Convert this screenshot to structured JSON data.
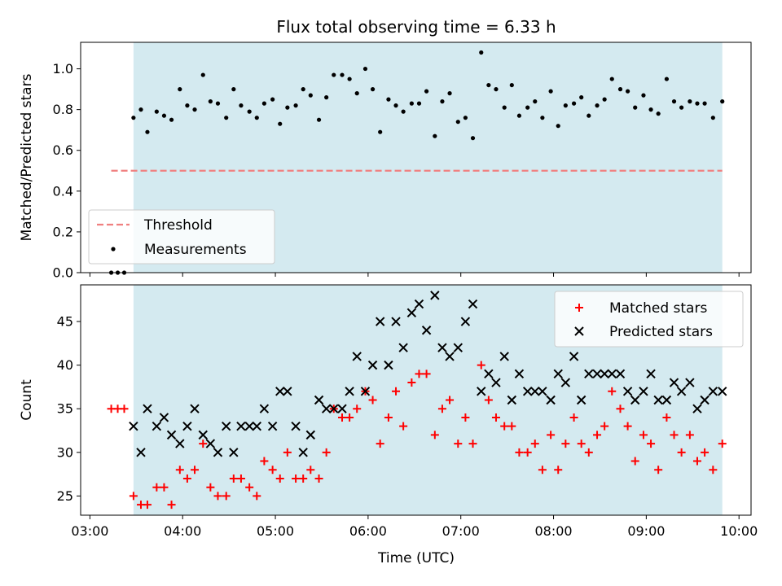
{
  "chart_data": {
    "title": "Flux total observing time = 6.33 h",
    "xlabel": "Time (UTC)",
    "x_ticks": [
      "03:00",
      "04:00",
      "05:00",
      "06:00",
      "07:00",
      "08:00",
      "09:00",
      "10:00"
    ],
    "x_range_hours": [
      2.9,
      10.13
    ],
    "shaded_region_hours": [
      3.47,
      9.82
    ],
    "shade_color": "#d4eaf0",
    "panels": [
      {
        "type": "scatter",
        "ylabel": "Matched/Predicted stars",
        "ylim": [
          0.0,
          1.13
        ],
        "y_ticks": [
          "0.0",
          "0.2",
          "0.4",
          "0.6",
          "0.8",
          "1.0"
        ],
        "legend_position": "lower-left",
        "threshold": {
          "name": "Threshold",
          "value": 0.5,
          "x_range": [
            3.23,
            9.82
          ],
          "color": "#f08080"
        },
        "series": [
          {
            "name": "Measurements",
            "color": "#000000",
            "points": [
              [
                3.23,
                0.0
              ],
              [
                3.3,
                0.0
              ],
              [
                3.37,
                0.0
              ],
              [
                3.47,
                0.76
              ],
              [
                3.55,
                0.8
              ],
              [
                3.62,
                0.69
              ],
              [
                3.72,
                0.79
              ],
              [
                3.8,
                0.77
              ],
              [
                3.88,
                0.75
              ],
              [
                3.97,
                0.9
              ],
              [
                4.05,
                0.82
              ],
              [
                4.13,
                0.8
              ],
              [
                4.22,
                0.97
              ],
              [
                4.3,
                0.84
              ],
              [
                4.38,
                0.83
              ],
              [
                4.47,
                0.76
              ],
              [
                4.55,
                0.9
              ],
              [
                4.63,
                0.82
              ],
              [
                4.72,
                0.79
              ],
              [
                4.8,
                0.76
              ],
              [
                4.88,
                0.83
              ],
              [
                4.97,
                0.85
              ],
              [
                5.05,
                0.73
              ],
              [
                5.13,
                0.81
              ],
              [
                5.22,
                0.82
              ],
              [
                5.3,
                0.9
              ],
              [
                5.38,
                0.87
              ],
              [
                5.47,
                0.75
              ],
              [
                5.55,
                0.86
              ],
              [
                5.63,
                0.97
              ],
              [
                5.72,
                0.97
              ],
              [
                5.8,
                0.95
              ],
              [
                5.88,
                0.88
              ],
              [
                5.97,
                1.0
              ],
              [
                6.05,
                0.9
              ],
              [
                6.13,
                0.69
              ],
              [
                6.22,
                0.85
              ],
              [
                6.3,
                0.82
              ],
              [
                6.38,
                0.79
              ],
              [
                6.47,
                0.83
              ],
              [
                6.55,
                0.83
              ],
              [
                6.63,
                0.89
              ],
              [
                6.72,
                0.67
              ],
              [
                6.8,
                0.84
              ],
              [
                6.88,
                0.88
              ],
              [
                6.97,
                0.74
              ],
              [
                7.05,
                0.76
              ],
              [
                7.13,
                0.66
              ],
              [
                7.22,
                1.08
              ],
              [
                7.3,
                0.92
              ],
              [
                7.38,
                0.9
              ],
              [
                7.47,
                0.81
              ],
              [
                7.55,
                0.92
              ],
              [
                7.63,
                0.77
              ],
              [
                7.72,
                0.81
              ],
              [
                7.8,
                0.84
              ],
              [
                7.88,
                0.76
              ],
              [
                7.97,
                0.89
              ],
              [
                8.05,
                0.72
              ],
              [
                8.13,
                0.82
              ],
              [
                8.22,
                0.83
              ],
              [
                8.3,
                0.86
              ],
              [
                8.38,
                0.77
              ],
              [
                8.47,
                0.82
              ],
              [
                8.55,
                0.85
              ],
              [
                8.63,
                0.95
              ],
              [
                8.72,
                0.9
              ],
              [
                8.8,
                0.89
              ],
              [
                8.88,
                0.81
              ],
              [
                8.97,
                0.87
              ],
              [
                9.05,
                0.8
              ],
              [
                9.13,
                0.78
              ],
              [
                9.22,
                0.95
              ],
              [
                9.3,
                0.84
              ],
              [
                9.38,
                0.81
              ],
              [
                9.47,
                0.84
              ],
              [
                9.55,
                0.83
              ],
              [
                9.63,
                0.83
              ],
              [
                9.72,
                0.76
              ],
              [
                9.82,
                0.84
              ]
            ]
          }
        ]
      },
      {
        "type": "scatter",
        "ylabel": "Count",
        "ylim": [
          22.8,
          49.2
        ],
        "y_ticks": [
          "25",
          "30",
          "35",
          "40",
          "45"
        ],
        "legend_position": "upper-right",
        "series": [
          {
            "name": "Matched stars",
            "color": "#ff0000",
            "marker": "plus",
            "points": [
              [
                3.23,
                35
              ],
              [
                3.3,
                35
              ],
              [
                3.37,
                35
              ],
              [
                3.47,
                25
              ],
              [
                3.55,
                24
              ],
              [
                3.62,
                24
              ],
              [
                3.72,
                26
              ],
              [
                3.8,
                26
              ],
              [
                3.88,
                24
              ],
              [
                3.97,
                28
              ],
              [
                4.05,
                27
              ],
              [
                4.13,
                28
              ],
              [
                4.22,
                31
              ],
              [
                4.3,
                26
              ],
              [
                4.38,
                25
              ],
              [
                4.47,
                25
              ],
              [
                4.55,
                27
              ],
              [
                4.63,
                27
              ],
              [
                4.72,
                26
              ],
              [
                4.8,
                25
              ],
              [
                4.88,
                29
              ],
              [
                4.97,
                28
              ],
              [
                5.05,
                27
              ],
              [
                5.13,
                30
              ],
              [
                5.22,
                27
              ],
              [
                5.3,
                27
              ],
              [
                5.38,
                28
              ],
              [
                5.47,
                27
              ],
              [
                5.55,
                30
              ],
              [
                5.63,
                35
              ],
              [
                5.72,
                34
              ],
              [
                5.8,
                34
              ],
              [
                5.88,
                35
              ],
              [
                5.97,
                37
              ],
              [
                6.05,
                36
              ],
              [
                6.13,
                31
              ],
              [
                6.22,
                34
              ],
              [
                6.3,
                37
              ],
              [
                6.38,
                33
              ],
              [
                6.47,
                38
              ],
              [
                6.55,
                39
              ],
              [
                6.63,
                39
              ],
              [
                6.72,
                32
              ],
              [
                6.8,
                35
              ],
              [
                6.88,
                36
              ],
              [
                6.97,
                31
              ],
              [
                7.05,
                34
              ],
              [
                7.13,
                31
              ],
              [
                7.22,
                40
              ],
              [
                7.3,
                36
              ],
              [
                7.38,
                34
              ],
              [
                7.47,
                33
              ],
              [
                7.55,
                33
              ],
              [
                7.63,
                30
              ],
              [
                7.72,
                30
              ],
              [
                7.8,
                31
              ],
              [
                7.88,
                28
              ],
              [
                7.97,
                32
              ],
              [
                8.05,
                28
              ],
              [
                8.13,
                31
              ],
              [
                8.22,
                34
              ],
              [
                8.3,
                31
              ],
              [
                8.38,
                30
              ],
              [
                8.47,
                32
              ],
              [
                8.55,
                33
              ],
              [
                8.63,
                37
              ],
              [
                8.72,
                35
              ],
              [
                8.8,
                33
              ],
              [
                8.88,
                29
              ],
              [
                8.97,
                32
              ],
              [
                9.05,
                31
              ],
              [
                9.13,
                28
              ],
              [
                9.22,
                34
              ],
              [
                9.3,
                32
              ],
              [
                9.38,
                30
              ],
              [
                9.47,
                32
              ],
              [
                9.55,
                29
              ],
              [
                9.63,
                30
              ],
              [
                9.72,
                28
              ],
              [
                9.82,
                31
              ]
            ]
          },
          {
            "name": "Predicted stars",
            "color": "#000000",
            "marker": "x",
            "points": [
              [
                3.47,
                33
              ],
              [
                3.55,
                30
              ],
              [
                3.62,
                35
              ],
              [
                3.72,
                33
              ],
              [
                3.8,
                34
              ],
              [
                3.88,
                32
              ],
              [
                3.97,
                31
              ],
              [
                4.05,
                33
              ],
              [
                4.13,
                35
              ],
              [
                4.22,
                32
              ],
              [
                4.3,
                31
              ],
              [
                4.38,
                30
              ],
              [
                4.47,
                33
              ],
              [
                4.55,
                30
              ],
              [
                4.63,
                33
              ],
              [
                4.72,
                33
              ],
              [
                4.8,
                33
              ],
              [
                4.88,
                35
              ],
              [
                4.97,
                33
              ],
              [
                5.05,
                37
              ],
              [
                5.13,
                37
              ],
              [
                5.22,
                33
              ],
              [
                5.3,
                30
              ],
              [
                5.38,
                32
              ],
              [
                5.47,
                36
              ],
              [
                5.55,
                35
              ],
              [
                5.63,
                35
              ],
              [
                5.72,
                35
              ],
              [
                5.8,
                37
              ],
              [
                5.88,
                41
              ],
              [
                5.97,
                37
              ],
              [
                6.05,
                40
              ],
              [
                6.13,
                45
              ],
              [
                6.22,
                40
              ],
              [
                6.3,
                45
              ],
              [
                6.38,
                42
              ],
              [
                6.47,
                46
              ],
              [
                6.55,
                47
              ],
              [
                6.63,
                44
              ],
              [
                6.72,
                48
              ],
              [
                6.8,
                42
              ],
              [
                6.88,
                41
              ],
              [
                6.97,
                42
              ],
              [
                7.05,
                45
              ],
              [
                7.13,
                47
              ],
              [
                7.22,
                37
              ],
              [
                7.3,
                39
              ],
              [
                7.38,
                38
              ],
              [
                7.47,
                41
              ],
              [
                7.55,
                36
              ],
              [
                7.63,
                39
              ],
              [
                7.72,
                37
              ],
              [
                7.8,
                37
              ],
              [
                7.88,
                37
              ],
              [
                7.97,
                36
              ],
              [
                8.05,
                39
              ],
              [
                8.13,
                38
              ],
              [
                8.22,
                41
              ],
              [
                8.3,
                36
              ],
              [
                8.38,
                39
              ],
              [
                8.47,
                39
              ],
              [
                8.55,
                39
              ],
              [
                8.63,
                39
              ],
              [
                8.72,
                39
              ],
              [
                8.8,
                37
              ],
              [
                8.88,
                36
              ],
              [
                8.97,
                37
              ],
              [
                9.05,
                39
              ],
              [
                9.13,
                36
              ],
              [
                9.22,
                36
              ],
              [
                9.3,
                38
              ],
              [
                9.38,
                37
              ],
              [
                9.47,
                38
              ],
              [
                9.55,
                35
              ],
              [
                9.63,
                36
              ],
              [
                9.72,
                37
              ],
              [
                9.82,
                37
              ]
            ]
          }
        ]
      }
    ]
  }
}
